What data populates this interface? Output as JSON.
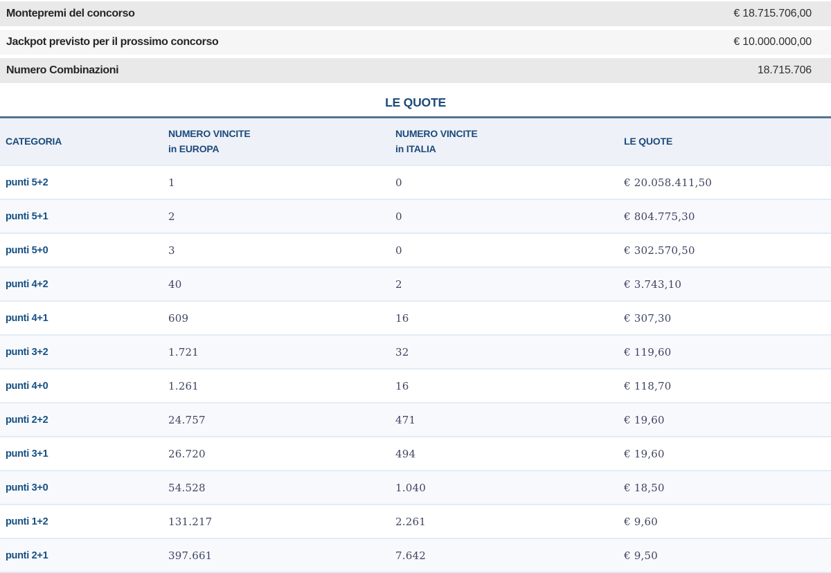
{
  "summary": {
    "rows": [
      {
        "label": "Montepremi del concorso",
        "value": "€ 18.715.706,00"
      },
      {
        "label": "Jackpot previsto per il prossimo concorso",
        "value": "€ 10.000.000,00"
      },
      {
        "label": "Numero Combinazioni",
        "value": "18.715.706"
      }
    ]
  },
  "section": {
    "title": "LE QUOTE"
  },
  "table": {
    "headers": [
      {
        "line1": "CATEGORIA",
        "line2": ""
      },
      {
        "line1": "NUMERO VINCITE",
        "line2": "in EUROPA"
      },
      {
        "line1": "NUMERO VINCITE",
        "line2": "in ITALIA"
      },
      {
        "line1": "LE QUOTE",
        "line2": ""
      }
    ],
    "rows": [
      {
        "categoria": "punti 5+2",
        "europa": "1",
        "italia": "0",
        "quota": "€ 20.058.411,50"
      },
      {
        "categoria": "punti 5+1",
        "europa": "2",
        "italia": "0",
        "quota": "€ 804.775,30"
      },
      {
        "categoria": "punti 5+0",
        "europa": "3",
        "italia": "0",
        "quota": "€ 302.570,50"
      },
      {
        "categoria": "punti 4+2",
        "europa": "40",
        "italia": "2",
        "quota": "€ 3.743,10"
      },
      {
        "categoria": "punti 4+1",
        "europa": "609",
        "italia": "16",
        "quota": "€ 307,30"
      },
      {
        "categoria": "punti 3+2",
        "europa": "1.721",
        "italia": "32",
        "quota": "€ 119,60"
      },
      {
        "categoria": "punti 4+0",
        "europa": "1.261",
        "italia": "16",
        "quota": "€ 118,70"
      },
      {
        "categoria": "punti 2+2",
        "europa": "24.757",
        "italia": "471",
        "quota": "€ 19,60"
      },
      {
        "categoria": "punti 3+1",
        "europa": "26.720",
        "italia": "494",
        "quota": "€ 19,60"
      },
      {
        "categoria": "punti 3+0",
        "europa": "54.528",
        "italia": "1.040",
        "quota": "€ 18,50"
      },
      {
        "categoria": "punti 1+2",
        "europa": "131.217",
        "italia": "2.261",
        "quota": "€ 9,60"
      },
      {
        "categoria": "punti 2+1",
        "europa": "397.661",
        "italia": "7.642",
        "quota": "€ 9,50"
      }
    ]
  },
  "colors": {
    "bar_gray": "#e9e9e9",
    "bar_light": "#f6f6f6",
    "title_blue": "#1b4a7a",
    "divider_slate": "#54748e",
    "header_bg": "#eef1f8",
    "row_alt_bg": "#f7f9fd",
    "row_separator": "#e2ecf5",
    "categoria_blue": "#165081",
    "number_slate": "#3f4460"
  }
}
